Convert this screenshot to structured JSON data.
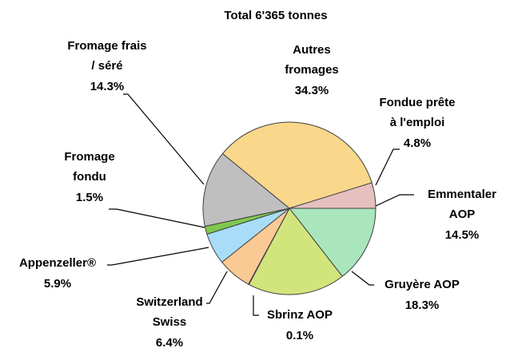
{
  "chart_data": {
    "type": "pie",
    "title": "Total 6'365 tonnes",
    "categories": [
      [
        "Emmentaler",
        "AOP"
      ],
      [
        "Gruyère AOP"
      ],
      [
        "Sbrinz AOP"
      ],
      [
        "Switzerland",
        "Swiss"
      ],
      [
        "Appenzeller®"
      ],
      [
        "Fromage",
        "fondu"
      ],
      [
        "Fromage frais",
        "/ séré"
      ],
      [
        "Autres",
        "fromages"
      ],
      [
        "Fondue prête",
        "à l'emploi"
      ]
    ],
    "values": [
      14.5,
      18.3,
      0.1,
      6.4,
      5.9,
      1.5,
      14.3,
      34.3,
      4.8
    ],
    "value_labels": [
      "14.5%",
      "18.3%",
      "0.1%",
      "6.4%",
      "5.9%",
      "1.5%",
      "14.3%",
      "34.3%",
      "4.8%"
    ],
    "colors": [
      "#a9e6bb",
      "#d2e57c",
      "#d9c9a0",
      "#fbc994",
      "#a9ddf7",
      "#7fc84f",
      "#bfbfbf",
      "#f9d78b",
      "#e6c0bf"
    ]
  }
}
